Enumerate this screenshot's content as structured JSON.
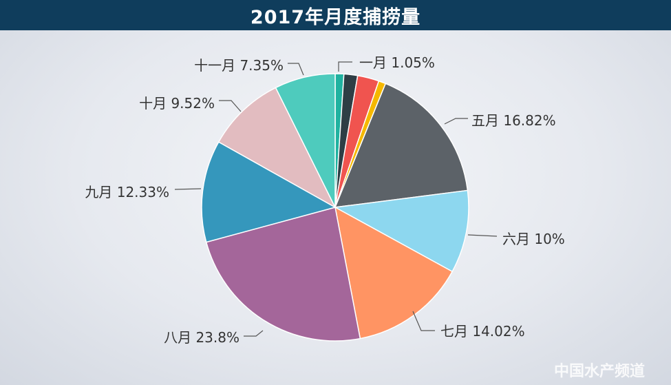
{
  "chart_data": {
    "type": "pie",
    "title": "2017年月度捕捞量",
    "slices": [
      {
        "label": "一月 1.05%",
        "value": 1.05,
        "color": "#20b2a0"
      },
      {
        "label": "",
        "value": 1.65,
        "color": "#2e3e45"
      },
      {
        "label": "",
        "value": 2.6,
        "color": "#f0544f"
      },
      {
        "label": "",
        "value": 0.86,
        "color": "#f5b800"
      },
      {
        "label": "五月 16.82%",
        "value": 16.82,
        "color": "#5c6268"
      },
      {
        "label": "六月 10%",
        "value": 10.0,
        "color": "#8dd7ef"
      },
      {
        "label": "七月 14.02%",
        "value": 14.02,
        "color": "#ff9463"
      },
      {
        "label": "八月 23.8%",
        "value": 23.8,
        "color": "#a4669a"
      },
      {
        "label": "九月 12.33%",
        "value": 12.33,
        "color": "#3597bc"
      },
      {
        "label": "十月 9.52%",
        "value": 9.52,
        "color": "#e2bcc0"
      },
      {
        "label": "十一月 7.35%",
        "value": 7.35,
        "color": "#4ecbbd"
      }
    ],
    "start": "12 o'clock, clockwise"
  },
  "watermark": "中国水产频道",
  "colors": {
    "title_bar": "#0f3d5c",
    "leader": "#555555"
  }
}
